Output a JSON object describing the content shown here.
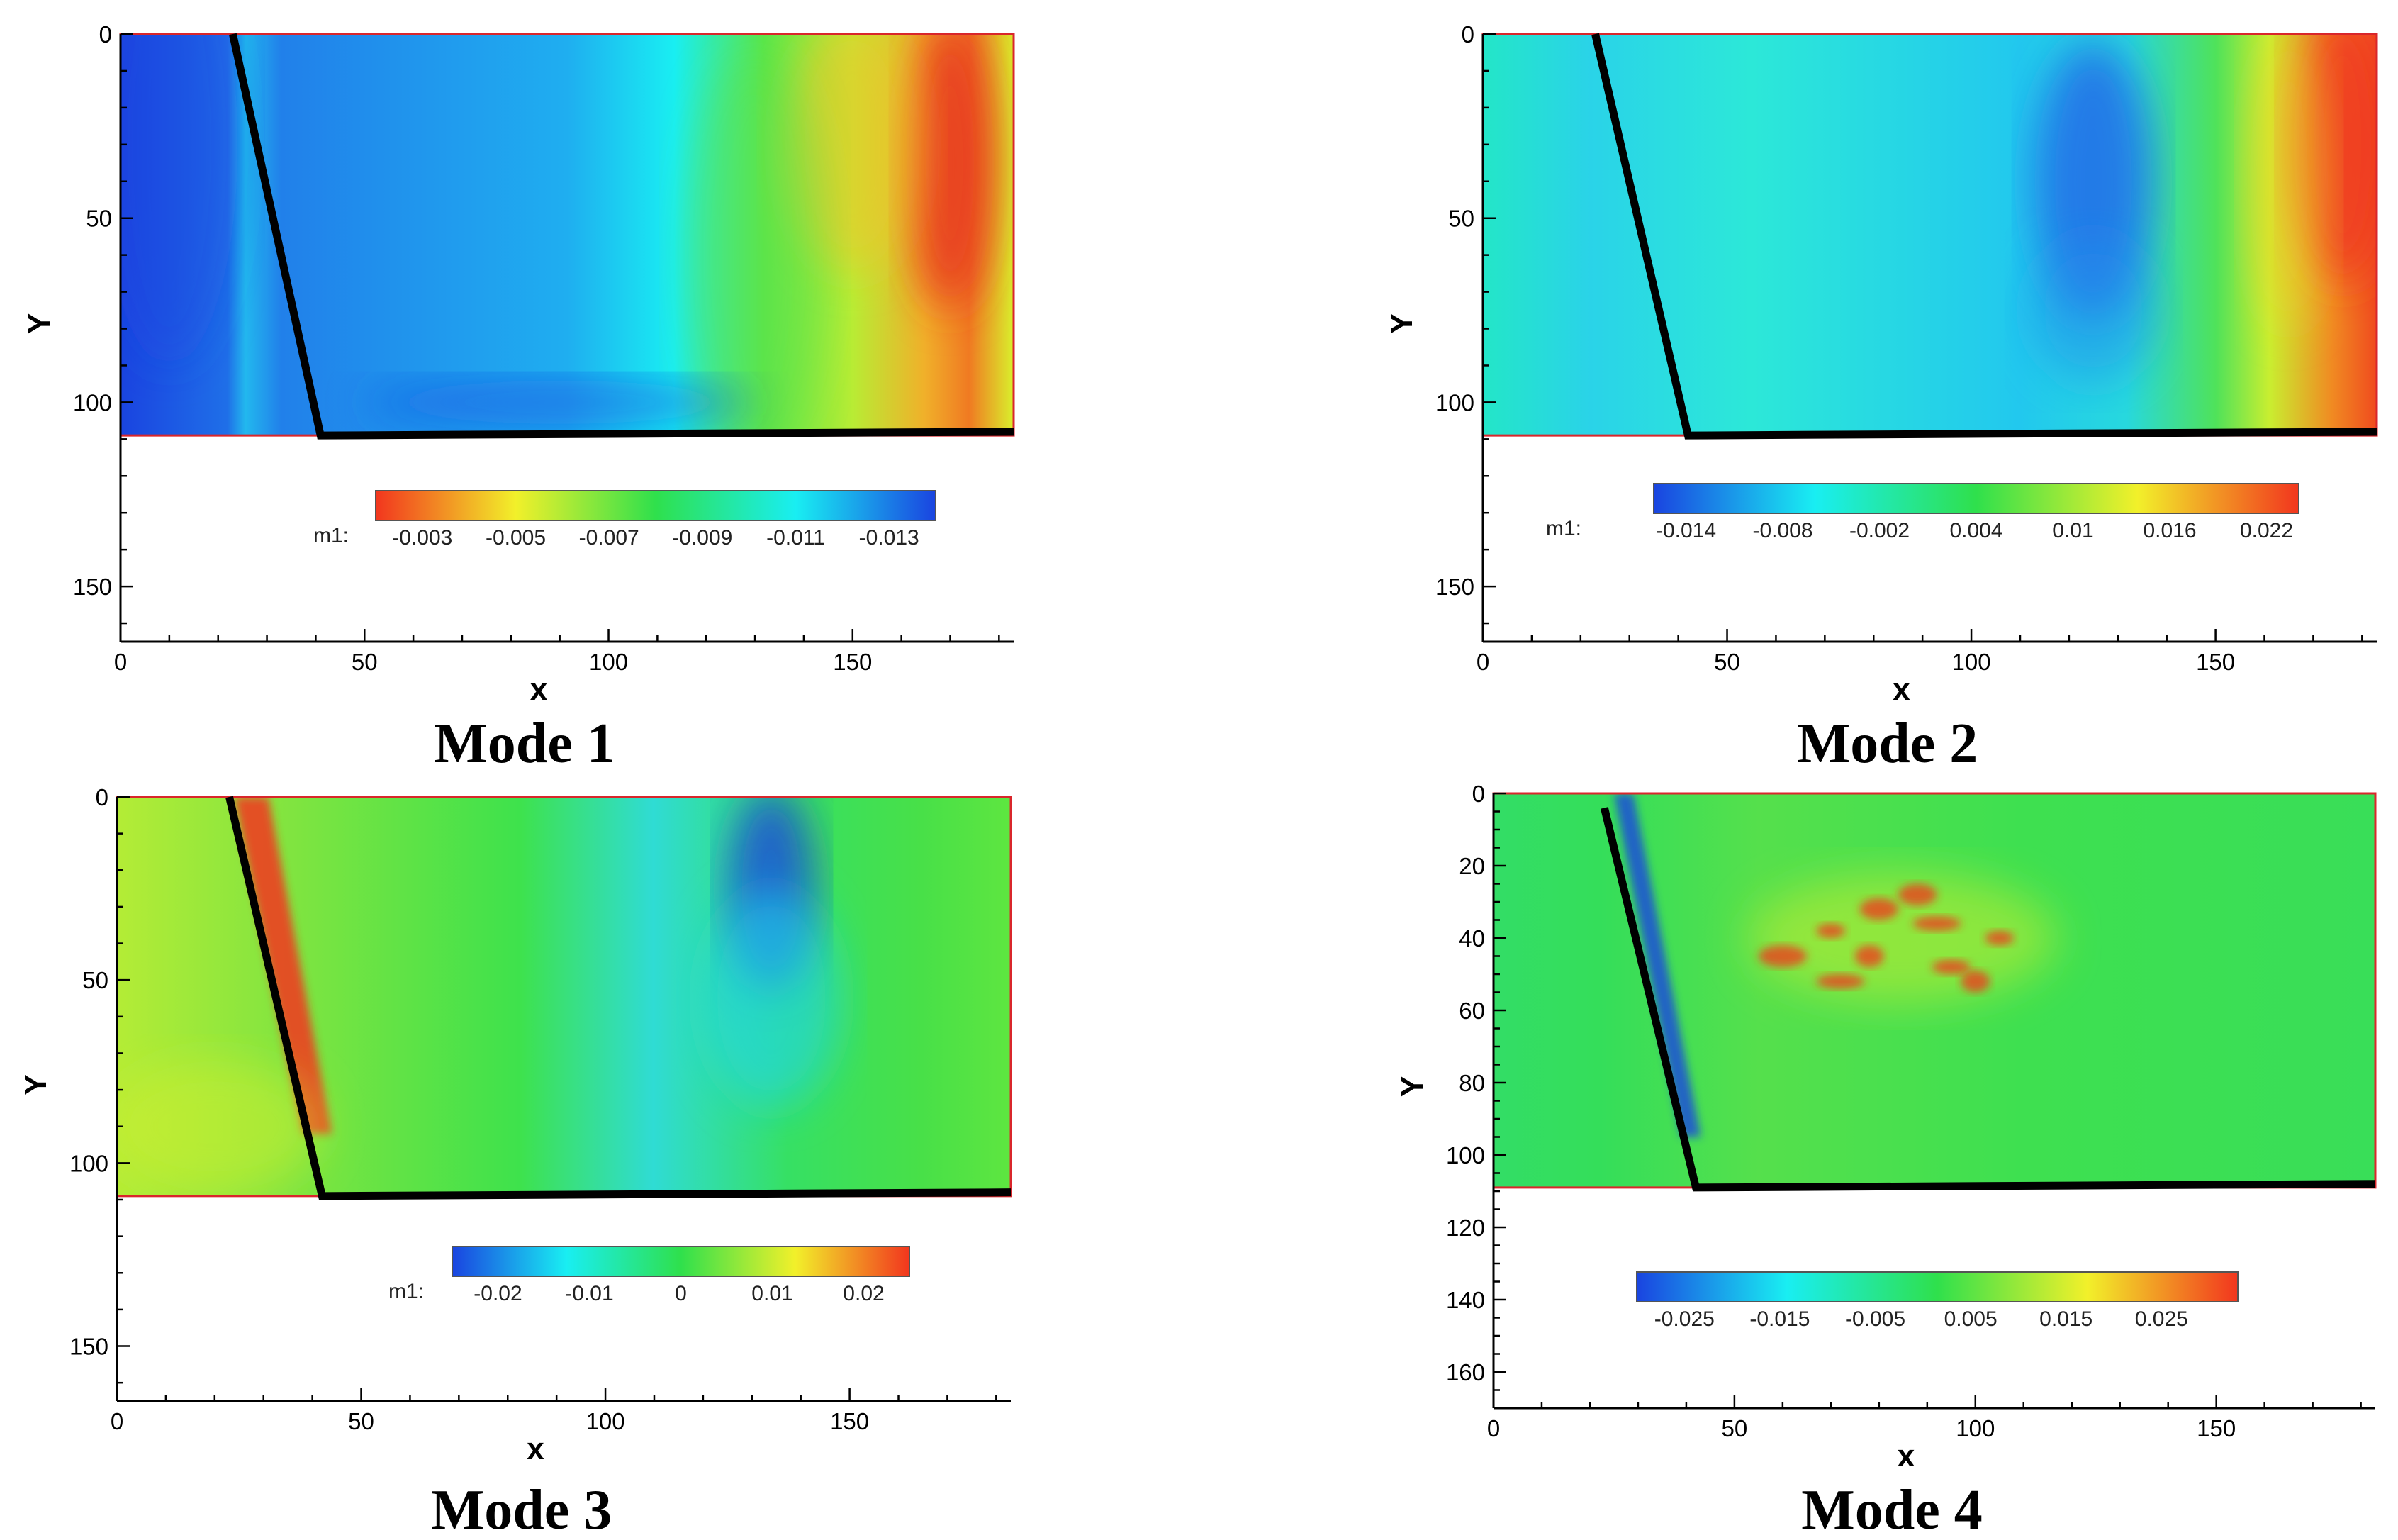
{
  "colors": {
    "blue": "#1a44e0",
    "cyan": "#19eef2",
    "green": "#2fe04c",
    "yellow": "#f2f02a",
    "red": "#f2361e",
    "frame": "#d9262b",
    "edge_line": "#000000"
  },
  "chart_data": [
    {
      "type": "heatmap",
      "title": "Mode 1",
      "xlabel": "x",
      "ylabel": "Y",
      "xlim": [
        0,
        183
      ],
      "ylim": [
        165,
        0
      ],
      "x_ticks": [
        "0",
        "50",
        "100",
        "150"
      ],
      "y_ticks": [
        "0",
        "50",
        "100",
        "150"
      ],
      "field_extent": {
        "x": [
          0,
          183
        ],
        "y": [
          0,
          109
        ]
      },
      "shock_line": [
        [
          23,
          0
        ],
        [
          41,
          109
        ],
        [
          183,
          108
        ]
      ],
      "colorbar": {
        "label": "m1:",
        "range": [
          -0.014,
          -0.002
        ],
        "reversed": true,
        "ticks": [
          "-0.013",
          "-0.011",
          "-0.009",
          "-0.007",
          "-0.005",
          "-0.003"
        ],
        "tick_values": [
          -0.013,
          -0.011,
          -0.009,
          -0.007,
          -0.005,
          -0.003
        ]
      },
      "field_description": "blue upstream, cyan band near x 30-120, green/yellow 120-160, red peak near x 170, y 20-60"
    },
    {
      "type": "heatmap",
      "title": "Mode 2",
      "xlabel": "x",
      "ylabel": "Y",
      "xlim": [
        0,
        183
      ],
      "ylim": [
        165,
        0
      ],
      "x_ticks": [
        "0",
        "50",
        "100",
        "150"
      ],
      "y_ticks": [
        "0",
        "50",
        "100",
        "150"
      ],
      "field_extent": {
        "x": [
          0,
          183
        ],
        "y": [
          0,
          109
        ]
      },
      "shock_line": [
        [
          23,
          0
        ],
        [
          42,
          109
        ],
        [
          183,
          108
        ]
      ],
      "colorbar": {
        "label": "m1:",
        "range": [
          -0.016,
          0.024
        ],
        "reversed": false,
        "ticks": [
          "-0.014",
          "-0.008",
          "-0.002",
          "0.004",
          "0.01",
          "0.016",
          "0.022"
        ],
        "tick_values": [
          -0.014,
          -0.008,
          -0.002,
          0.004,
          0.01,
          0.016,
          0.022
        ]
      },
      "field_description": "cyan/green background, blue patch near x 110-140, red region near x 165-183, y 0-70"
    },
    {
      "type": "heatmap",
      "title": "Mode 3",
      "xlabel": "x",
      "ylabel": "Y",
      "xlim": [
        0,
        183
      ],
      "ylim": [
        165,
        0
      ],
      "x_ticks": [
        "0",
        "50",
        "100",
        "150"
      ],
      "y_ticks": [
        "0",
        "50",
        "100",
        "150"
      ],
      "field_extent": {
        "x": [
          0,
          183
        ],
        "y": [
          0,
          109
        ]
      },
      "shock_line": [
        [
          23,
          0
        ],
        [
          42,
          109
        ],
        [
          183,
          108
        ]
      ],
      "colorbar": {
        "label": "m1:",
        "range": [
          -0.025,
          0.025
        ],
        "reversed": false,
        "ticks": [
          "-0.02",
          "-0.01",
          "0",
          "0.01",
          "0.02"
        ],
        "tick_values": [
          -0.02,
          -0.01,
          0,
          0.01,
          0.02
        ]
      },
      "field_description": "green field, red band along the shock line, blue/cyan patch near x 120-145, y 0-60"
    },
    {
      "type": "heatmap",
      "title": "Mode 4",
      "xlabel": "x",
      "ylabel": "Y",
      "xlim": [
        0,
        183
      ],
      "ylim": [
        170,
        0
      ],
      "x_ticks": [
        "0",
        "50",
        "100",
        "150"
      ],
      "y_ticks": [
        "0",
        "20",
        "40",
        "60",
        "80",
        "100",
        "120",
        "140",
        "160"
      ],
      "field_extent": {
        "x": [
          0,
          183
        ],
        "y": [
          0,
          109
        ]
      },
      "shock_line": [
        [
          23,
          4
        ],
        [
          42,
          109
        ],
        [
          183,
          108
        ]
      ],
      "colorbar": {
        "label": "",
        "range": [
          -0.03,
          0.033
        ],
        "reversed": false,
        "ticks": [
          "-0.025",
          "-0.015",
          "-0.005",
          "0.005",
          "0.015",
          "0.025"
        ],
        "tick_values": [
          -0.025,
          -0.015,
          -0.005,
          0.005,
          0.015,
          0.025
        ]
      },
      "field_description": "green field, blue strip along the shock line, yellow/red speckles near x 50-120, y 20-60"
    }
  ]
}
